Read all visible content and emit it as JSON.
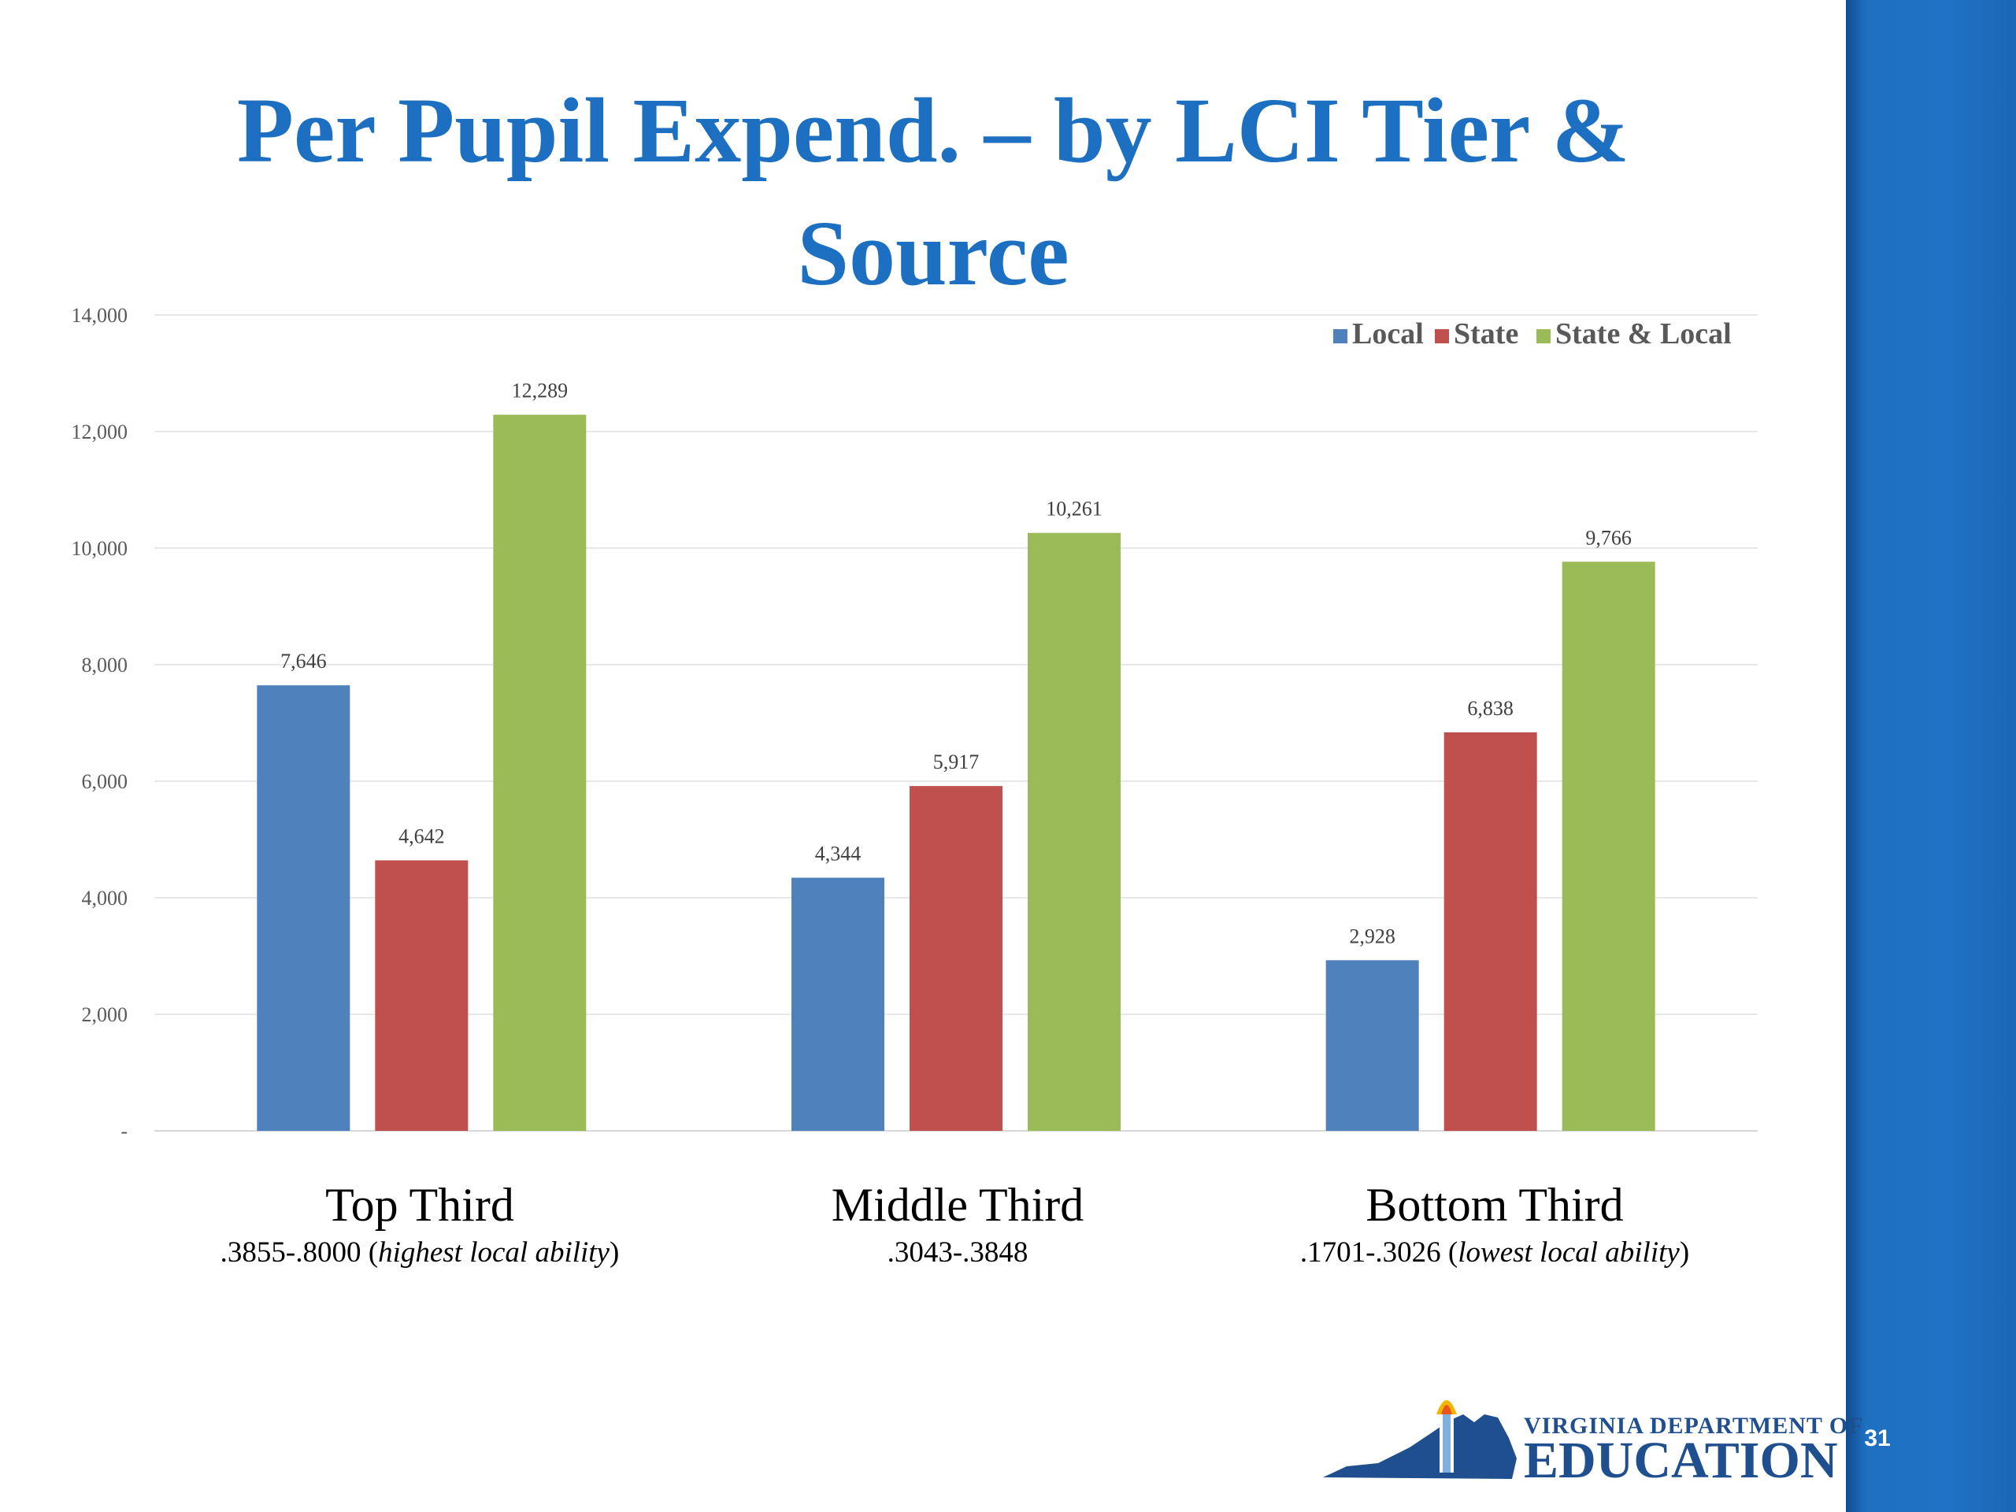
{
  "slide": {
    "title": "Per Pupil Expend. – by LCI Tier & Source",
    "page_number": "31",
    "logo": {
      "line1": "VIRGINIA DEPARTMENT OF",
      "line2": "EDUCATION"
    },
    "sidebar_color": "#1f70c1",
    "title_color": "#1d6fc1"
  },
  "categories_display": [
    {
      "name": "Top Third",
      "range": ".3855-.8000 (",
      "note": "highest local ability",
      "close": ")"
    },
    {
      "name": "Middle Third",
      "range": ".3043-.3848",
      "note": "",
      "close": ""
    },
    {
      "name": "Bottom Third",
      "range": ".1701-.3026 (",
      "note": "lowest local ability",
      "close": ")"
    }
  ],
  "chart_data": {
    "type": "bar",
    "title": "",
    "xlabel": "",
    "ylabel": "",
    "categories": [
      "Top Third",
      "Middle Third",
      "Bottom Third"
    ],
    "series": [
      {
        "name": "Local",
        "color": "#4f81bd",
        "values": [
          7646,
          4344,
          2928
        ],
        "labels": [
          "7,646",
          "4,344",
          "2,928"
        ]
      },
      {
        "name": "State",
        "color": "#c0504d",
        "values": [
          4642,
          5917,
          6838
        ],
        "labels": [
          "4,642",
          "5,917",
          "6,838"
        ]
      },
      {
        "name": "State & Local",
        "color": "#9bbb59",
        "values": [
          12289,
          10261,
          9766
        ],
        "labels": [
          "12,289",
          "10,261",
          "9,766"
        ]
      }
    ],
    "ylim": [
      0,
      14000
    ],
    "yticks": [
      0,
      2000,
      4000,
      6000,
      8000,
      10000,
      12000,
      14000
    ],
    "ytick_labels": [
      "-",
      "2,000",
      "4,000",
      "6,000",
      "8,000",
      "10,000",
      "12,000",
      "14,000"
    ],
    "grid": true,
    "legend_position": "top-right"
  }
}
